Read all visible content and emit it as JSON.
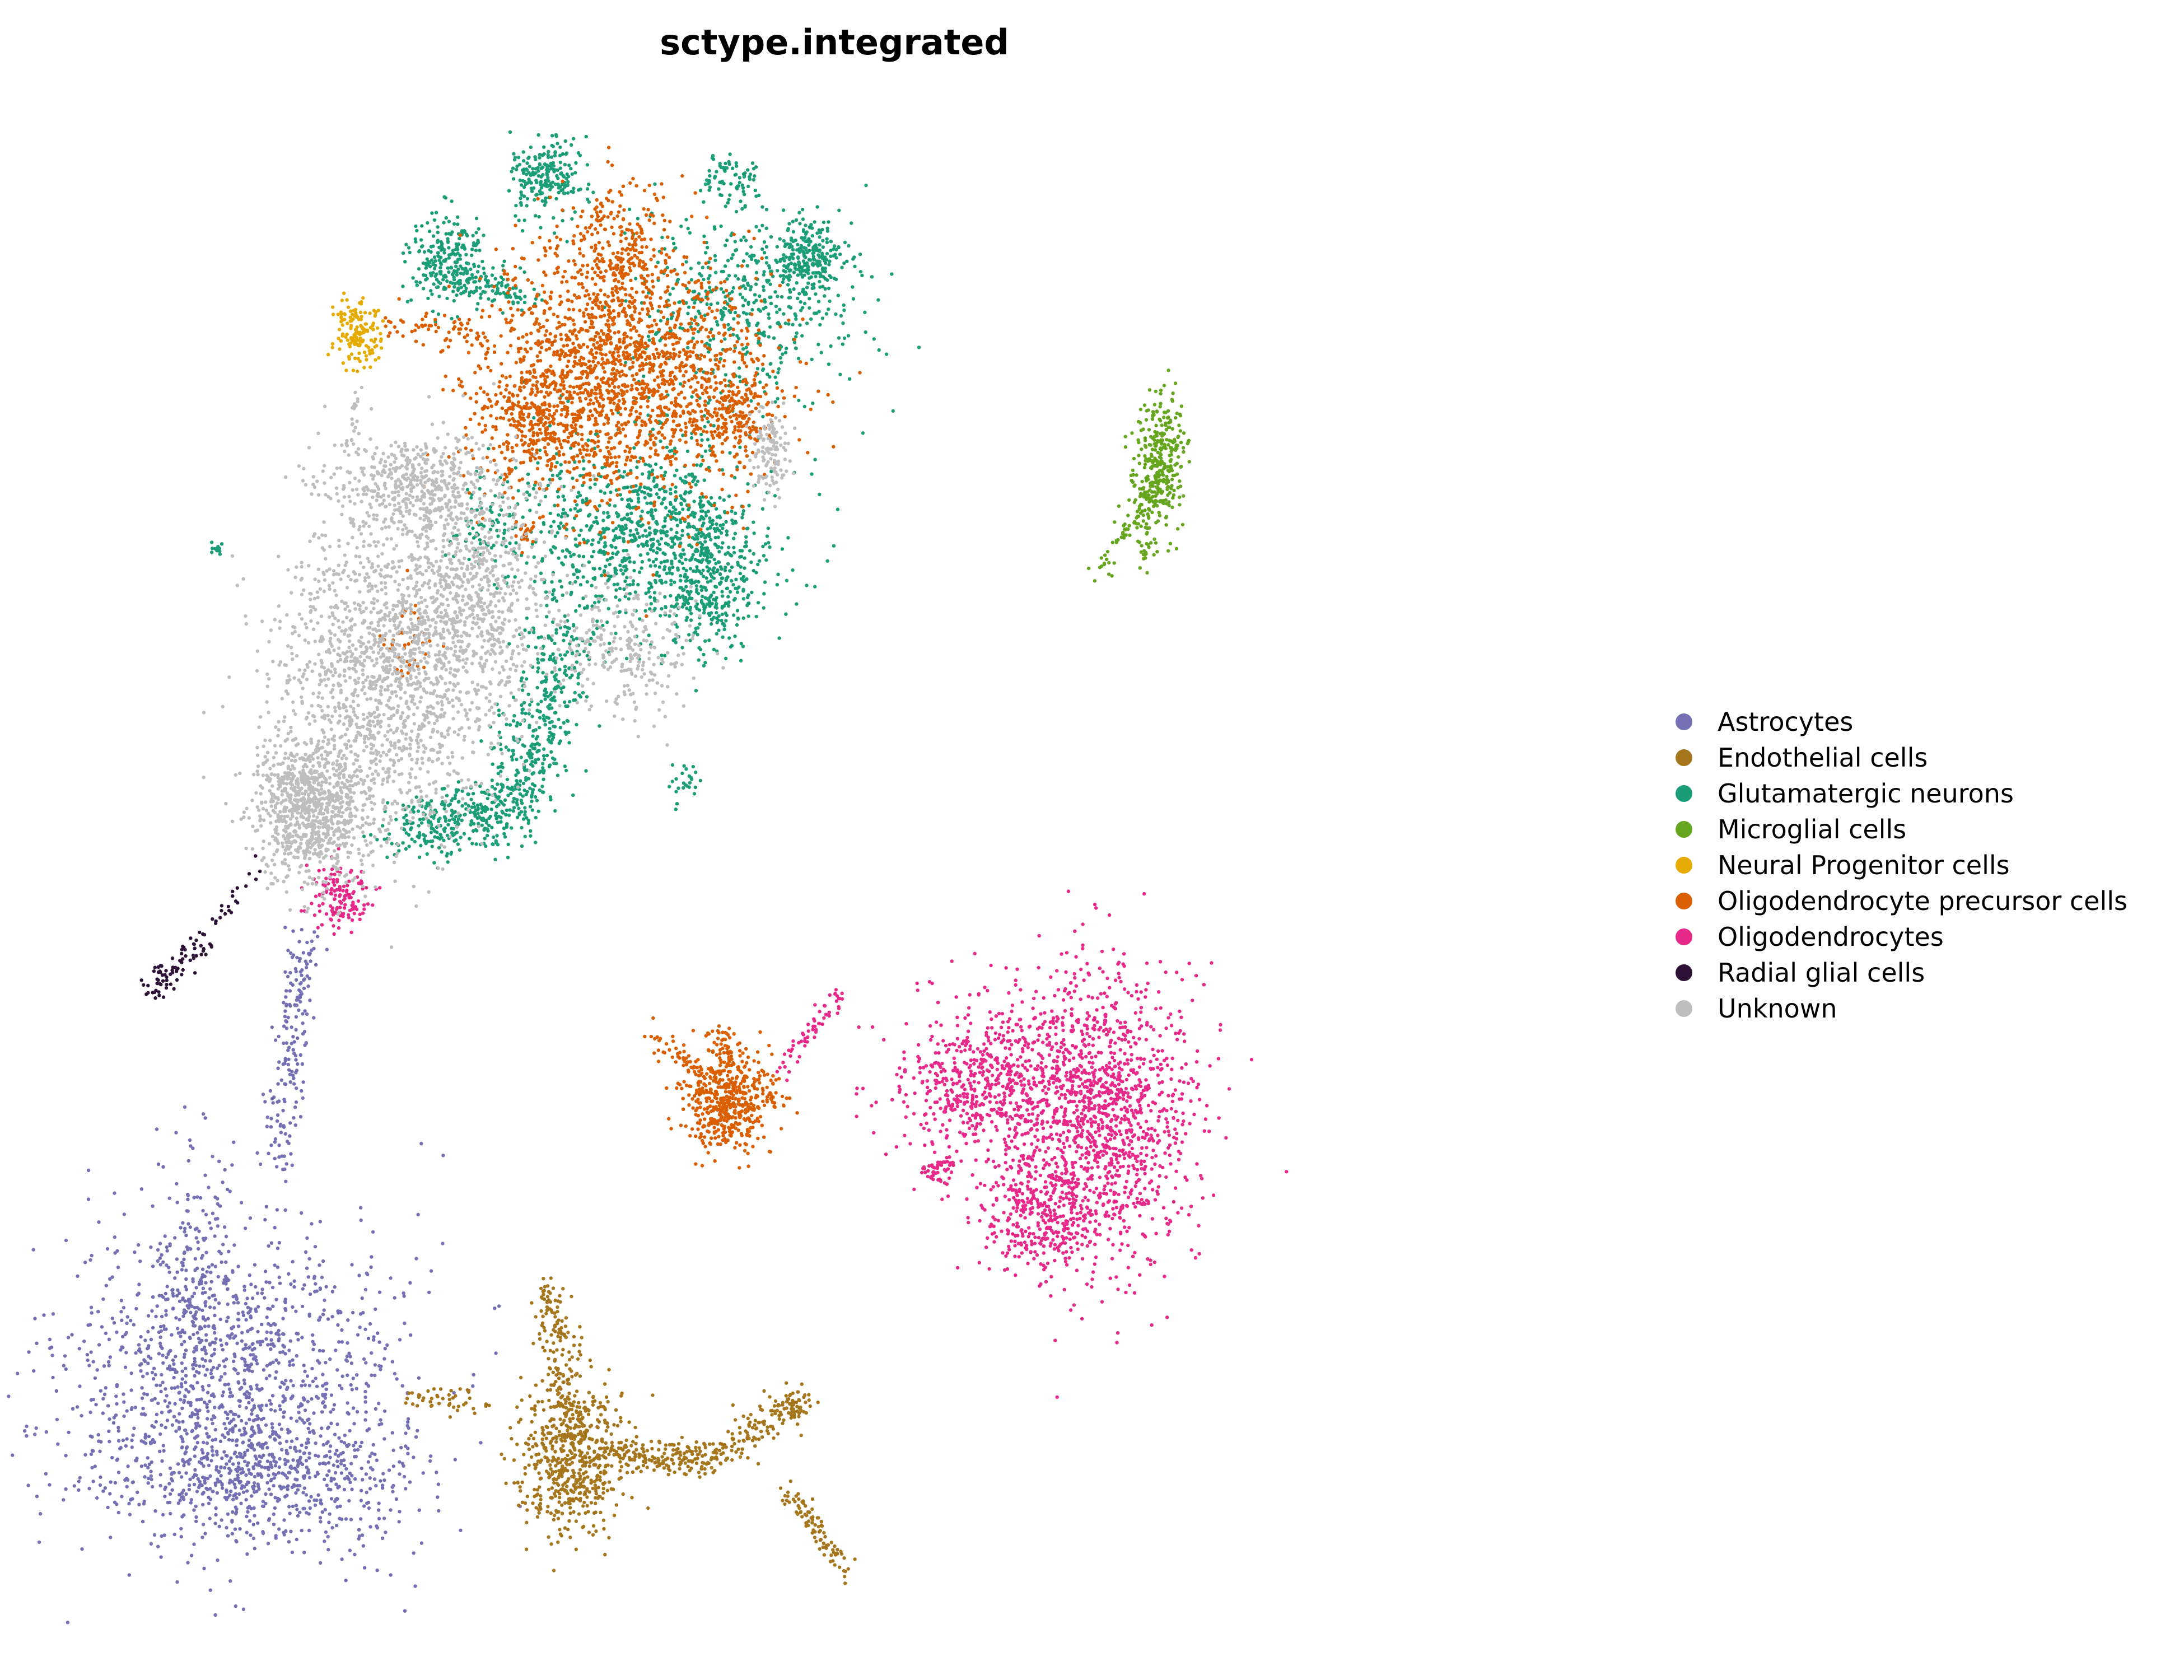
{
  "chart_data": {
    "type": "scatter",
    "title": "sctype.integrated",
    "xlabel": "",
    "ylabel": "",
    "axes_visible": false,
    "grid": false,
    "legend_placement": "right",
    "xlim": [
      0,
      1
    ],
    "ylim": [
      0,
      1
    ],
    "series": [
      {
        "name": "Astrocytes",
        "color": "#7570b3",
        "clusters": [
          {
            "cx": 0.105,
            "cy": 0.165,
            "sx": 0.055,
            "sy": 0.05,
            "n": 1300
          },
          {
            "cx": 0.125,
            "cy": 0.105,
            "sx": 0.05,
            "sy": 0.02,
            "n": 500
          },
          {
            "cx": 0.08,
            "cy": 0.23,
            "sx": 0.01,
            "sy": 0.045,
            "n": 150
          },
          {
            "x0": 0.135,
            "y0": 0.3,
            "x1": 0.15,
            "y1": 0.44,
            "spread": 0.006,
            "n": 180
          }
        ]
      },
      {
        "name": "Endothelial cells",
        "color": "#a6761d",
        "clusters": [
          {
            "cx": 0.325,
            "cy": 0.115,
            "sx": 0.018,
            "sy": 0.022,
            "n": 550
          },
          {
            "x0": 0.31,
            "y0": 0.225,
            "x1": 0.325,
            "y1": 0.14,
            "spread": 0.006,
            "n": 160
          },
          {
            "x0": 0.345,
            "y0": 0.12,
            "x1": 0.41,
            "y1": 0.115,
            "spread": 0.005,
            "n": 170
          },
          {
            "x0": 0.41,
            "y0": 0.115,
            "x1": 0.48,
            "y1": 0.155,
            "spread": 0.006,
            "n": 180
          },
          {
            "x0": 0.465,
            "y0": 0.1,
            "x1": 0.505,
            "y1": 0.045,
            "spread": 0.004,
            "n": 90
          },
          {
            "x0": 0.22,
            "y0": 0.155,
            "x1": 0.265,
            "y1": 0.15,
            "spread": 0.004,
            "n": 45
          }
        ]
      },
      {
        "name": "Glutamatergic neurons",
        "color": "#1b9e77",
        "clusters": [
          {
            "cx": 0.375,
            "cy": 0.69,
            "sx": 0.04,
            "sy": 0.03,
            "n": 950
          },
          {
            "cx": 0.415,
            "cy": 0.655,
            "sx": 0.015,
            "sy": 0.02,
            "n": 250
          },
          {
            "cx": 0.44,
            "cy": 0.835,
            "sx": 0.035,
            "sy": 0.03,
            "n": 500
          },
          {
            "cx": 0.48,
            "cy": 0.86,
            "sx": 0.01,
            "sy": 0.012,
            "n": 220
          },
          {
            "cx": 0.31,
            "cy": 0.91,
            "sx": 0.012,
            "sy": 0.012,
            "n": 220
          },
          {
            "cx": 0.245,
            "cy": 0.86,
            "sx": 0.013,
            "sy": 0.015,
            "n": 220
          },
          {
            "x0": 0.245,
            "y0": 0.85,
            "x1": 0.3,
            "y1": 0.835,
            "spread": 0.006,
            "n": 120
          },
          {
            "x0": 0.32,
            "y0": 0.63,
            "x1": 0.29,
            "y1": 0.52,
            "spread": 0.012,
            "n": 380
          },
          {
            "x0": 0.29,
            "y0": 0.52,
            "x1": 0.215,
            "y1": 0.505,
            "spread": 0.01,
            "n": 320
          },
          {
            "cx": 0.43,
            "cy": 0.91,
            "sx": 0.008,
            "sy": 0.008,
            "n": 70
          },
          {
            "cx": 0.27,
            "cy": 0.695,
            "sx": 0.012,
            "sy": 0.015,
            "n": 80
          },
          {
            "cx": 0.4,
            "cy": 0.535,
            "sx": 0.004,
            "sy": 0.006,
            "n": 25
          },
          {
            "cx": 0.095,
            "cy": 0.68,
            "sx": 0.002,
            "sy": 0.002,
            "n": 12
          }
        ]
      },
      {
        "name": "Microglial cells",
        "color": "#66a61e",
        "clusters": [
          {
            "cx": 0.708,
            "cy": 0.735,
            "sx": 0.008,
            "sy": 0.02,
            "n": 320
          },
          {
            "x0": 0.705,
            "y0": 0.72,
            "x1": 0.67,
            "y1": 0.665,
            "spread": 0.004,
            "n": 60
          },
          {
            "x0": 0.7,
            "y0": 0.72,
            "x1": 0.7,
            "y1": 0.67,
            "spread": 0.003,
            "n": 40
          }
        ]
      },
      {
        "name": "Neural Progenitor cells",
        "color": "#e6ab02",
        "clusters": [
          {
            "cx": 0.185,
            "cy": 0.815,
            "sx": 0.007,
            "sy": 0.01,
            "n": 160
          }
        ]
      },
      {
        "name": "Oligodendrocyte precursor cells",
        "color": "#d95f02",
        "clusters": [
          {
            "cx": 0.355,
            "cy": 0.79,
            "sx": 0.045,
            "sy": 0.04,
            "n": 1800
          },
          {
            "cx": 0.3,
            "cy": 0.76,
            "sx": 0.02,
            "sy": 0.015,
            "n": 250
          },
          {
            "cx": 0.43,
            "cy": 0.765,
            "sx": 0.015,
            "sy": 0.015,
            "n": 200
          },
          {
            "cx": 0.355,
            "cy": 0.87,
            "sx": 0.015,
            "sy": 0.02,
            "n": 200
          },
          {
            "cx": 0.425,
            "cy": 0.34,
            "sx": 0.013,
            "sy": 0.017,
            "n": 500
          },
          {
            "x0": 0.375,
            "y0": 0.38,
            "x1": 0.41,
            "y1": 0.355,
            "spread": 0.004,
            "n": 40
          },
          {
            "x0": 0.445,
            "y0": 0.355,
            "x1": 0.465,
            "y1": 0.335,
            "spread": 0.004,
            "n": 30
          },
          {
            "x0": 0.42,
            "y0": 0.385,
            "x1": 0.43,
            "y1": 0.36,
            "spread": 0.003,
            "n": 25
          },
          {
            "x0": 0.205,
            "y0": 0.82,
            "x1": 0.27,
            "y1": 0.815,
            "spread": 0.004,
            "n": 50
          },
          {
            "cx": 0.22,
            "cy": 0.62,
            "sx": 0.01,
            "sy": 0.015,
            "n": 40
          },
          {
            "cx": 0.295,
            "cy": 0.69,
            "sx": 0.004,
            "sy": 0.008,
            "n": 20
          }
        ]
      },
      {
        "name": "Oligodendrocytes",
        "color": "#e7298a",
        "clusters": [
          {
            "cx": 0.67,
            "cy": 0.33,
            "sx": 0.03,
            "sy": 0.045,
            "n": 1300
          },
          {
            "cx": 0.595,
            "cy": 0.35,
            "sx": 0.03,
            "sy": 0.025,
            "n": 600
          },
          {
            "cx": 0.63,
            "cy": 0.265,
            "sx": 0.02,
            "sy": 0.018,
            "n": 300
          },
          {
            "cx": 0.565,
            "cy": 0.295,
            "sx": 0.006,
            "sy": 0.006,
            "n": 50
          },
          {
            "x0": 0.46,
            "y0": 0.355,
            "x1": 0.5,
            "y1": 0.405,
            "spread": 0.003,
            "n": 60
          },
          {
            "cx": 0.175,
            "cy": 0.465,
            "sx": 0.009,
            "sy": 0.01,
            "n": 130
          }
        ]
      },
      {
        "name": "Radial glial cells",
        "color": "#2d1136",
        "clusters": [
          {
            "x0": 0.05,
            "y0": 0.405,
            "x1": 0.088,
            "y1": 0.44,
            "spread": 0.004,
            "n": 80
          },
          {
            "x0": 0.09,
            "y0": 0.445,
            "x1": 0.125,
            "y1": 0.485,
            "spread": 0.003,
            "n": 20
          }
        ]
      },
      {
        "name": "Unknown",
        "color": "#bebebe",
        "clusters": [
          {
            "cx": 0.155,
            "cy": 0.52,
            "sx": 0.018,
            "sy": 0.022,
            "n": 900
          },
          {
            "cx": 0.2,
            "cy": 0.6,
            "sx": 0.035,
            "sy": 0.05,
            "n": 1400
          },
          {
            "cx": 0.26,
            "cy": 0.65,
            "sx": 0.03,
            "sy": 0.04,
            "n": 800
          },
          {
            "cx": 0.225,
            "cy": 0.72,
            "sx": 0.03,
            "sy": 0.015,
            "n": 450
          },
          {
            "cx": 0.36,
            "cy": 0.62,
            "sx": 0.02,
            "sy": 0.02,
            "n": 250
          },
          {
            "cx": 0.455,
            "cy": 0.74,
            "sx": 0.006,
            "sy": 0.015,
            "n": 120
          },
          {
            "x0": 0.185,
            "y0": 0.78,
            "x1": 0.18,
            "y1": 0.74,
            "spread": 0.002,
            "n": 25
          }
        ]
      }
    ]
  }
}
